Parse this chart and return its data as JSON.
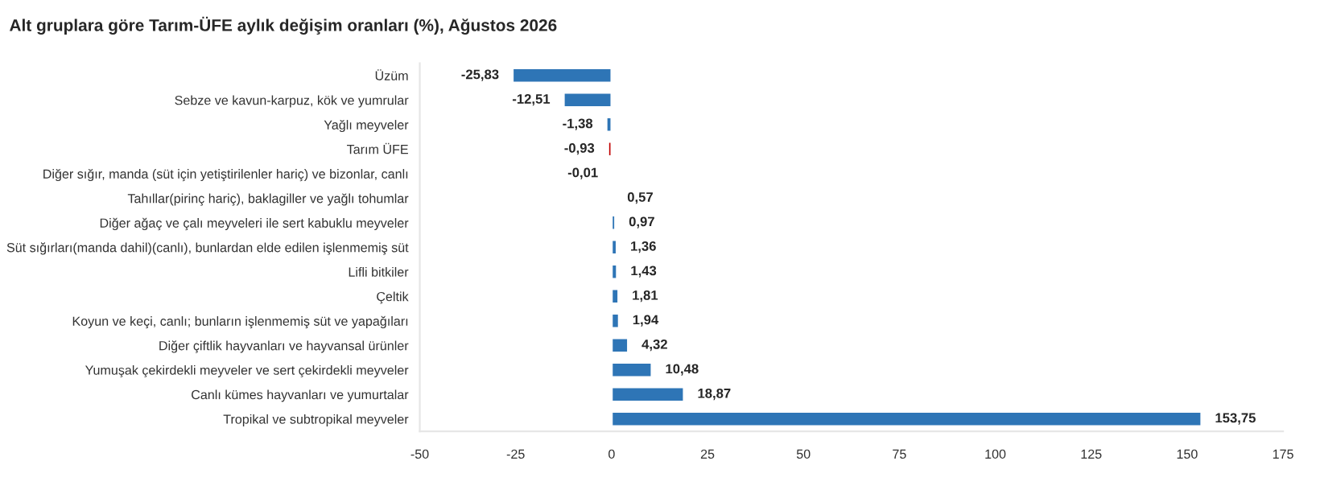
{
  "chart_data": {
    "type": "bar",
    "orientation": "horizontal",
    "title": "Alt gruplara göre Tarım-ÜFE aylık değişim oranları (%), Ağustos 2026",
    "categories": [
      "Üzüm",
      "Sebze ve kavun-karpuz, kök ve yumrular",
      "Yağlı meyveler",
      "Tarım ÜFE",
      "Diğer sığır, manda (süt için yetiştirilenler hariç) ve bizonlar, canlı",
      "Tahıllar(pirinç hariç), baklagiller ve yağlı tohumlar",
      "Diğer ağaç ve çalı meyveleri ile sert kabuklu meyveler",
      "Süt sığırları(manda dahil)(canlı), bunlardan elde edilen işlenmemiş süt",
      "Lifli bitkiler",
      "Çeltik",
      "Koyun ve keçi, canlı; bunların işlenmemiş süt ve yapağıları",
      "Diğer çiftlik hayvanları ve hayvansal ürünler",
      "Yumuşak çekirdekli meyveler ve sert çekirdekli meyveler",
      "Canlı kümes hayvanları ve yumurtalar",
      "Tropikal ve subtropikal meyveler"
    ],
    "values": [
      -25.83,
      -12.51,
      -1.38,
      -0.93,
      -0.01,
      0.57,
      0.97,
      1.36,
      1.43,
      1.81,
      1.94,
      4.32,
      10.48,
      18.87,
      153.75
    ],
    "value_labels": [
      "-25,83",
      "-12,51",
      "-1,38",
      "-0,93",
      "-0,01",
      "0,57",
      "0,97",
      "1,36",
      "1,43",
      "1,81",
      "1,94",
      "4,32",
      "10,48",
      "18,87",
      "153,75"
    ],
    "colors": [
      "#2e75b6",
      "#2e75b6",
      "#2e75b6",
      "#c00000",
      "#2e75b6",
      "#2e75b6",
      "#2e75b6",
      "#2e75b6",
      "#2e75b6",
      "#2e75b6",
      "#2e75b6",
      "#2e75b6",
      "#2e75b6",
      "#2e75b6",
      "#2e75b6"
    ],
    "xlim": [
      -50,
      175
    ],
    "xticks": [
      -50,
      -25,
      0,
      25,
      50,
      75,
      100,
      125,
      150,
      175
    ],
    "grid": false,
    "legend": false
  }
}
